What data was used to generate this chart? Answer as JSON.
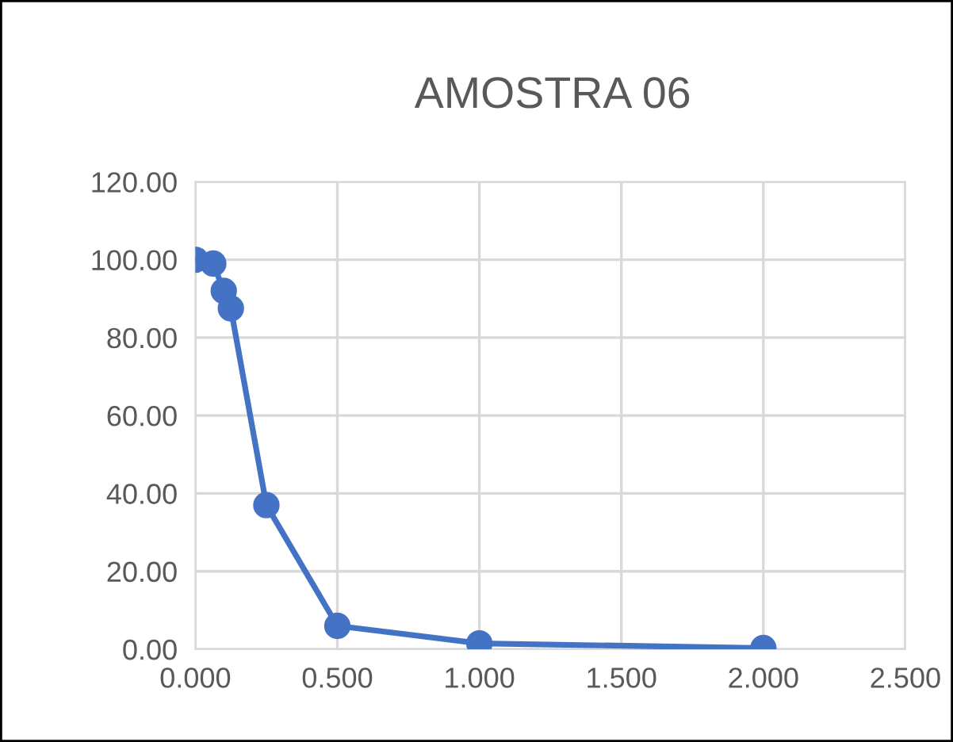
{
  "chart_data": {
    "type": "line",
    "title": "AMOSTRA 06",
    "x": [
      0.0,
      0.063,
      0.1,
      0.125,
      0.25,
      0.5,
      1.0,
      2.0
    ],
    "series": [
      {
        "color": "#4472c4",
        "values": [
          100.0,
          99.0,
          92.0,
          87.5,
          37.0,
          6.0,
          1.5,
          0.3
        ]
      }
    ],
    "xlim": [
      0,
      2.5
    ],
    "ylim": [
      0,
      120
    ],
    "xticks": [
      {
        "value": 0,
        "label": "0.000"
      },
      {
        "value": 0.5,
        "label": "0.500"
      },
      {
        "value": 1.0,
        "label": "1.000"
      },
      {
        "value": 1.5,
        "label": "1.500"
      },
      {
        "value": 2.0,
        "label": "2.000"
      },
      {
        "value": 2.5,
        "label": "2.500"
      }
    ],
    "yticks": [
      {
        "value": 0,
        "label": "0.00"
      },
      {
        "value": 20,
        "label": "20.00"
      },
      {
        "value": 40,
        "label": "40.00"
      },
      {
        "value": 60,
        "label": "60.00"
      },
      {
        "value": 80,
        "label": "80.00"
      },
      {
        "value": 100,
        "label": "100.00"
      },
      {
        "value": 120,
        "label": "120.00"
      }
    ],
    "grid": true,
    "marker": "circle",
    "line_style": "solid"
  }
}
